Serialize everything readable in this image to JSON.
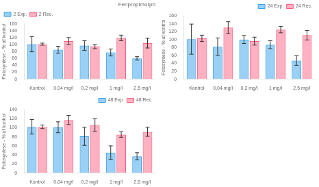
{
  "chart_data": [
    {
      "type": "bar",
      "title": "Fenpropimorph",
      "ylabel": "Fotosyntese - % af kontrol",
      "categories": [
        "Kontrol",
        "0,04 mg/l",
        "0,2 mg/l",
        "1 mg/l",
        "2,5 mg/l"
      ],
      "series": [
        {
          "name": "2 Exp.",
          "values": [
            101,
            85,
            97,
            77,
            60
          ],
          "errors": [
            22,
            10,
            14,
            10,
            5
          ]
        },
        {
          "name": "2 Rec.",
          "values": [
            101,
            110,
            94,
            119,
            104
          ],
          "errors": [
            3,
            10,
            6,
            8,
            14
          ]
        }
      ],
      "ylim": [
        0,
        160
      ],
      "yticks": [
        0,
        20,
        40,
        60,
        80,
        100,
        120,
        140,
        160
      ],
      "legend": "upper left",
      "grid": false
    },
    {
      "type": "bar",
      "ylabel": "Fotosyntese - % af kontrol",
      "categories": [
        "Kontrol",
        "0,04 mg/l",
        "0,2 mg/l",
        "1 mg/l",
        "2,5 mg/l"
      ],
      "series": [
        {
          "name": "24 Exp.",
          "values": [
            101,
            82,
            100,
            87,
            47
          ],
          "errors": [
            38,
            22,
            10,
            10,
            12
          ]
        },
        {
          "name": "24 Rec.",
          "values": [
            103,
            130,
            96,
            125,
            111
          ],
          "errors": [
            8,
            15,
            10,
            8,
            12
          ]
        }
      ],
      "ylim": [
        0,
        160
      ],
      "yticks": [
        0,
        20,
        40,
        60,
        80,
        100,
        120,
        140,
        160
      ],
      "legend": "upper right",
      "grid": false
    },
    {
      "type": "bar",
      "ylabel": "Fotosyntese - % af kontrol",
      "categories": [
        "Kontrol",
        "0,04 mg/l",
        "0,2 mg/l",
        "1 mg/l",
        "2,5 mg/l"
      ],
      "series": [
        {
          "name": "48 Exp.",
          "values": [
            102,
            101,
            81,
            45,
            37
          ],
          "errors": [
            16,
            12,
            20,
            15,
            8
          ]
        },
        {
          "name": "48 Rec.",
          "values": [
            102,
            117,
            106,
            85,
            91
          ],
          "errors": [
            4,
            10,
            14,
            6,
            10
          ]
        }
      ],
      "ylim": [
        0,
        140
      ],
      "yticks": [
        0,
        20,
        40,
        60,
        80,
        100,
        120,
        140
      ],
      "legend": "upper right",
      "grid": false
    }
  ]
}
